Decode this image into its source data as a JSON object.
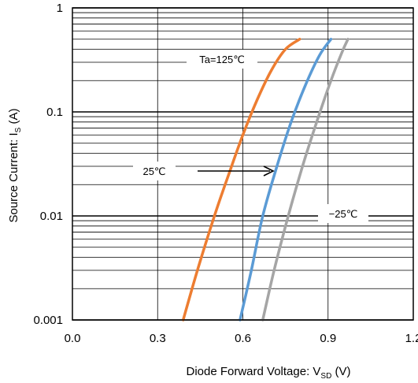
{
  "chart_data": {
    "type": "line",
    "title": "",
    "xlabel": "Diode Forward Voltage: V",
    "xlabel_sub": "SD",
    "xlabel_unit": " (V)",
    "ylabel": "Source Current: I",
    "ylabel_sub": "S",
    "ylabel_unit": " (A)",
    "xlim": [
      0,
      1.2
    ],
    "ylim": [
      0.001,
      1
    ],
    "y_scale": "log",
    "grid": true,
    "x_ticks": [
      {
        "value": 0,
        "label": "0.0"
      },
      {
        "value": 0.3,
        "label": "0.3"
      },
      {
        "value": 0.6,
        "label": "0.6"
      },
      {
        "value": 0.9,
        "label": "0.9"
      },
      {
        "value": 1.2,
        "label": "1.2"
      }
    ],
    "y_ticks": [
      {
        "value": 1,
        "label": "1"
      },
      {
        "value": 0.1,
        "label": "0.1"
      },
      {
        "value": 0.01,
        "label": "0.01"
      },
      {
        "value": 0.001,
        "label": "0.001"
      }
    ],
    "series": [
      {
        "name": "Ta=125℃",
        "color": "#ed7d31",
        "x": [
          0.39,
          0.44,
          0.5,
          0.55,
          0.6,
          0.65,
          0.7,
          0.75,
          0.8
        ],
        "y": [
          0.001,
          0.003,
          0.01,
          0.025,
          0.06,
          0.13,
          0.25,
          0.4,
          0.5
        ]
      },
      {
        "name": "25℃",
        "color": "#5b9bd5",
        "x": [
          0.59,
          0.63,
          0.67,
          0.72,
          0.77,
          0.82,
          0.87,
          0.91
        ],
        "y": [
          0.001,
          0.003,
          0.01,
          0.03,
          0.08,
          0.18,
          0.35,
          0.5
        ]
      },
      {
        "name": "−25℃",
        "color": "#a5a5a5",
        "x": [
          0.67,
          0.71,
          0.76,
          0.81,
          0.86,
          0.91,
          0.95,
          0.97
        ],
        "y": [
          0.001,
          0.003,
          0.01,
          0.03,
          0.08,
          0.2,
          0.38,
          0.5
        ]
      }
    ],
    "annotations": [
      {
        "text": "Ta=125℃",
        "series": 0
      },
      {
        "text": "25℃",
        "series": 1,
        "arrow": true
      },
      {
        "text": "−25℃",
        "series": 2
      }
    ]
  }
}
